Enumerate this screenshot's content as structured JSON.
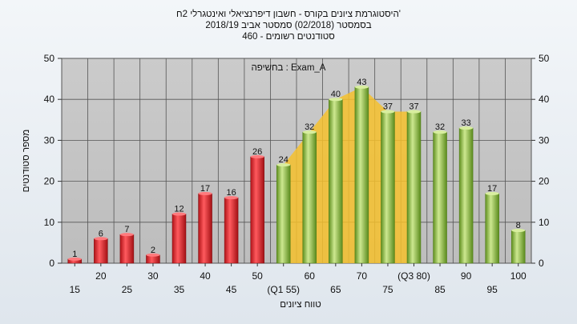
{
  "chart_data": {
    "type": "bar",
    "title_lines": [
      "היסטוגרמת ציונים בקורס - חשבון דיפרנציאלי ואינטגרלי 2ח'",
      "בסמסטר  (02/2018)  סמסטר אביב 2018/19",
      "סטודנטים רשומים - 460"
    ],
    "annotation": "בחשיפה : Exam_A",
    "xlabel": "טווח ציונים",
    "ylabel": "מספר סטודנטים",
    "ylim": [
      0,
      50
    ],
    "yticks": [
      0,
      10,
      20,
      30,
      40,
      50
    ],
    "grid": true,
    "categories": [
      "15",
      "20",
      "25",
      "30",
      "35",
      "40",
      "45",
      "50",
      "55",
      "60",
      "65",
      "70",
      "75",
      "80",
      "85",
      "90",
      "95",
      "100"
    ],
    "x_tick_labels": [
      "15",
      "20",
      "25",
      "30",
      "35",
      "40",
      "45",
      "50",
      "(Q1 55)",
      "60",
      "65",
      "70",
      "75",
      "(Q3 80)",
      "85",
      "90",
      "95",
      "100"
    ],
    "values": [
      1,
      6,
      7,
      2,
      12,
      17,
      16,
      26,
      24,
      32,
      40,
      43,
      37,
      37,
      32,
      33,
      17,
      8
    ],
    "bar_colors": [
      "#d9262b",
      "#d9262b",
      "#d9262b",
      "#d9262b",
      "#d9262b",
      "#d9262b",
      "#d9262b",
      "#d9262b",
      "#8fbf3a",
      "#8fbf3a",
      "#8fbf3a",
      "#8fbf3a",
      "#8fbf3a",
      "#8fbf3a",
      "#8fbf3a",
      "#8fbf3a",
      "#8fbf3a",
      "#8fbf3a"
    ],
    "highlight_range": [
      "55",
      "80"
    ],
    "highlight_color": "#f6c12d",
    "plot_background": "#c4c4c4"
  }
}
